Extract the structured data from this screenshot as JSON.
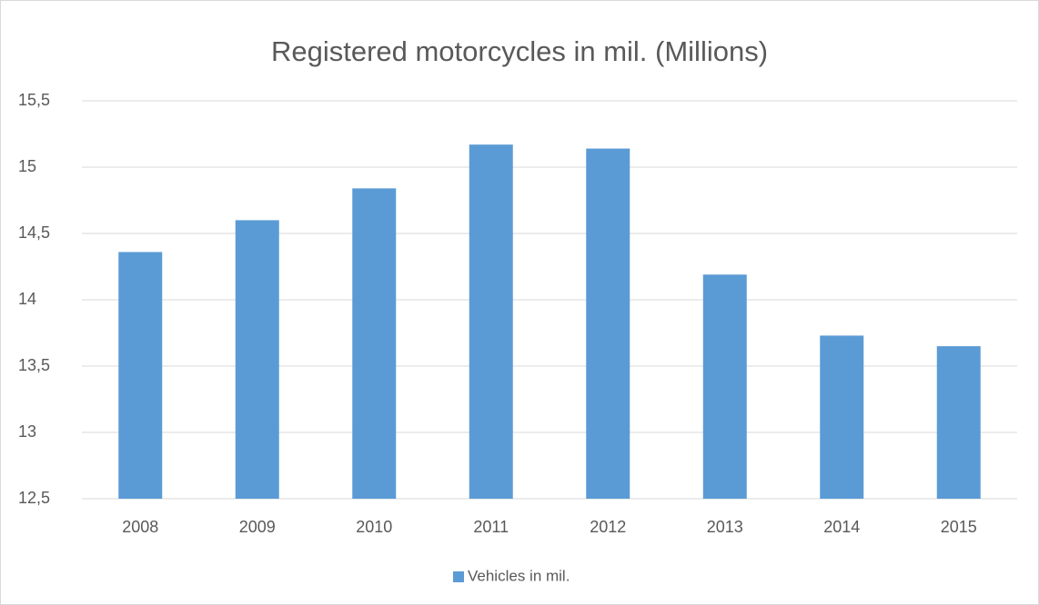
{
  "chart_data": {
    "type": "bar",
    "title": "Registered motorcycles in mil. (Millions)",
    "categories": [
      "2008",
      "2009",
      "2010",
      "2011",
      "2012",
      "2013",
      "2014",
      "2015"
    ],
    "series": [
      {
        "name": "Vehicles in mil.",
        "color": "#5b9bd5",
        "values": [
          14.36,
          14.6,
          14.84,
          15.17,
          15.14,
          14.19,
          13.73,
          13.65
        ]
      }
    ],
    "ylim": [
      12.5,
      15.5
    ],
    "yticks": [
      {
        "value": 12.5,
        "label": "12,5"
      },
      13,
      {
        "value": 13.5,
        "label": "13,5"
      },
      14,
      {
        "value": 14.5,
        "label": "14,5"
      },
      15,
      {
        "value": 15.5,
        "label": "15,5"
      }
    ],
    "grid": true,
    "legend": "bottom"
  }
}
